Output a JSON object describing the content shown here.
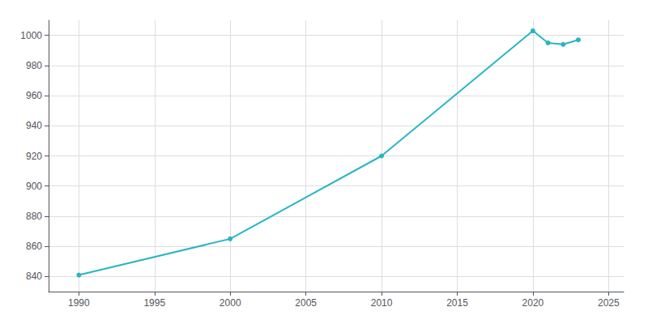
{
  "chart_data": {
    "type": "line",
    "x": [
      1990,
      2000,
      2010,
      2020,
      2021,
      2022,
      2023
    ],
    "values": [
      841,
      865,
      920,
      1003,
      995,
      994,
      997
    ],
    "color": "#29b5c3",
    "marker": "circle",
    "xlim": [
      1988,
      2026
    ],
    "ylim": [
      830,
      1010
    ],
    "xticks": [
      1990,
      1995,
      2000,
      2005,
      2010,
      2015,
      2020,
      2025
    ],
    "yticks": [
      840,
      860,
      880,
      900,
      920,
      940,
      960,
      980,
      1000
    ],
    "grid": true
  }
}
